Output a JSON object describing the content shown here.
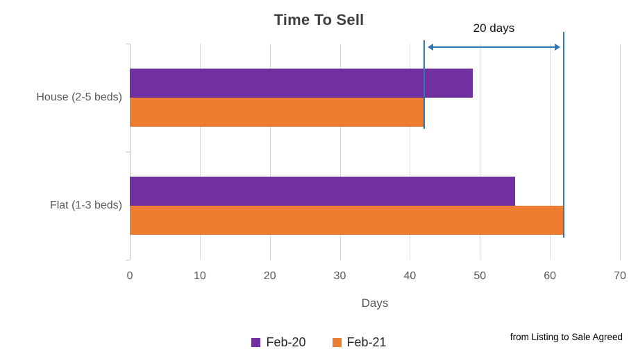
{
  "chart_data": {
    "type": "bar",
    "orientation": "horizontal",
    "title": "Time To Sell",
    "xlabel": "Days",
    "categories": [
      "House (2-5 beds)",
      "Flat (1-3 beds)"
    ],
    "series": [
      {
        "name": "Feb-20",
        "color": "#7030A0",
        "values": [
          49,
          55
        ]
      },
      {
        "name": "Feb-21",
        "color": "#ED7D31",
        "values": [
          42,
          62
        ]
      }
    ],
    "xlim": [
      0,
      70
    ],
    "xticks": [
      0,
      10,
      20,
      30,
      40,
      50,
      60,
      70
    ],
    "grid": true,
    "legend_position": "bottom",
    "annotation": {
      "label": "20 days",
      "from_value": 42,
      "to_value": 62,
      "color": "#2E75B6"
    }
  },
  "footnote": "from Listing to Sale Agreed"
}
